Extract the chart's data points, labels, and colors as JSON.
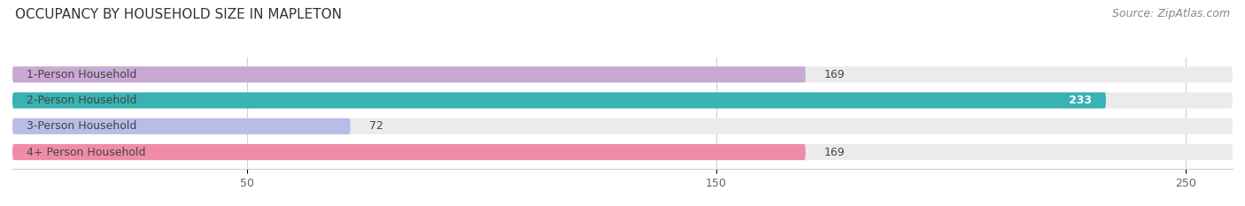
{
  "title": "OCCUPANCY BY HOUSEHOLD SIZE IN MAPLETON",
  "source": "Source: ZipAtlas.com",
  "categories": [
    "1-Person Household",
    "2-Person Household",
    "3-Person Household",
    "4+ Person Household"
  ],
  "values": [
    169,
    233,
    72,
    169
  ],
  "bar_colors": [
    "#c9a8d4",
    "#38b2b2",
    "#b8bde8",
    "#f08ca8"
  ],
  "xlim_max": 260,
  "xticks": [
    50,
    150,
    250
  ],
  "title_fontsize": 11,
  "label_fontsize": 9,
  "value_fontsize": 9,
  "source_fontsize": 9,
  "bar_height": 0.62,
  "bar_gap": 1.0,
  "figsize": [
    14.06,
    2.33
  ],
  "dpi": 100,
  "bg_color": "#ffffff",
  "track_color": "#ebebeb",
  "value_inside_bar_idx": 1,
  "grid_color": "#d0d0d0"
}
